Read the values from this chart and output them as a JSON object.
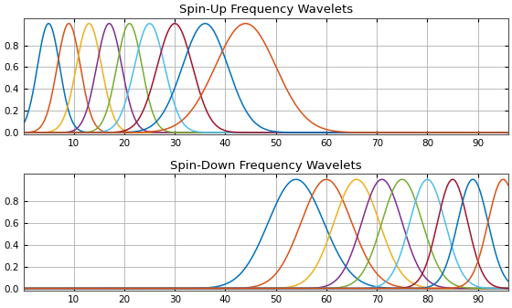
{
  "title_up": "Spin-Up Frequency Wavelets",
  "title_down": "Spin-Down Frequency Wavelets",
  "xmin": 0,
  "xmax": 96,
  "ymin": 0,
  "ymax": 1.0,
  "n_points": 2000,
  "up_centers": [
    5,
    9,
    13,
    17,
    21,
    25,
    30,
    36,
    44
  ],
  "up_sigmas": [
    2.2,
    2.3,
    2.5,
    2.5,
    2.5,
    3.0,
    3.5,
    4.5,
    6.0
  ],
  "down_centers": [
    54,
    60,
    66,
    71,
    75,
    80,
    85,
    89,
    95
  ],
  "down_sigmas": [
    5.5,
    5.0,
    4.5,
    4.0,
    4.0,
    3.5,
    3.0,
    3.0,
    3.0
  ],
  "matlab_colors": [
    "#0072BD",
    "#D95319",
    "#EDB120",
    "#7E2F8E",
    "#77AC30",
    "#4DBEEE",
    "#A2142F",
    "#0072BD",
    "#D95319"
  ],
  "figsize": [
    5.6,
    3.37
  ],
  "dpi": 100,
  "xticks": [
    10,
    20,
    30,
    40,
    50,
    60,
    70,
    80,
    90
  ],
  "yticks": [
    0,
    0.2,
    0.4,
    0.6,
    0.8
  ],
  "grid_color": "#b0b0b0",
  "title_fontsize": 9.5,
  "tick_fontsize": 7.5,
  "linewidth": 1.1
}
